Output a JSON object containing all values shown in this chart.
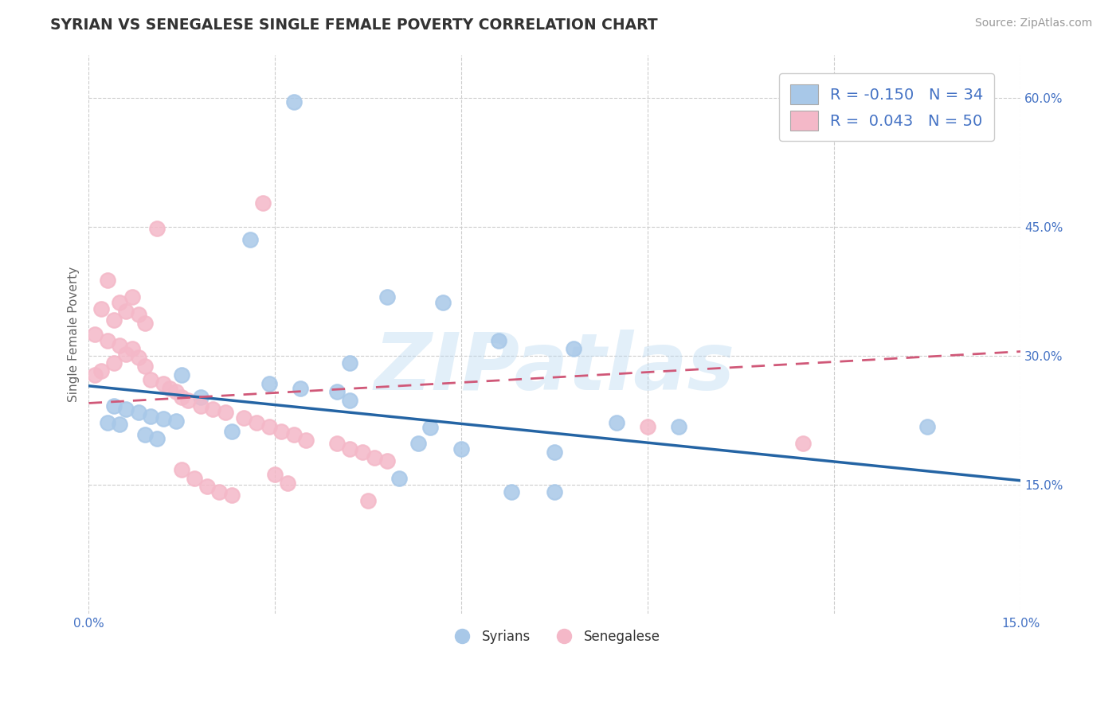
{
  "title": "SYRIAN VS SENEGALESE SINGLE FEMALE POVERTY CORRELATION CHART",
  "source": "Source: ZipAtlas.com",
  "ylabel": "Single Female Poverty",
  "legend_syrians": "Syrians",
  "legend_senegalese": "Senegalese",
  "syrian_R": -0.15,
  "syrian_N": 34,
  "senegalese_R": 0.043,
  "senegalese_N": 50,
  "xlim": [
    0,
    0.15
  ],
  "ylim": [
    0.0,
    0.65
  ],
  "yticks": [
    0.15,
    0.3,
    0.45,
    0.6
  ],
  "ytick_labels": [
    "15.0%",
    "30.0%",
    "45.0%",
    "60.0%"
  ],
  "xticks": [
    0.0,
    0.03,
    0.06,
    0.09,
    0.12,
    0.15
  ],
  "xtick_labels": [
    "0.0%",
    "",
    "",
    "",
    "",
    "15.0%"
  ],
  "blue_color": "#A8C8E8",
  "pink_color": "#F4B8C8",
  "blue_line_color": "#2464A4",
  "pink_line_color": "#D05878",
  "watermark": "ZIPatlas",
  "background_color": "#FFFFFF",
  "grid_color": "#CCCCCC",
  "syrian_line_x": [
    0.0,
    0.15
  ],
  "syrian_line_y": [
    0.265,
    0.155
  ],
  "senegalese_line_x": [
    0.0,
    0.15
  ],
  "senegalese_line_y": [
    0.245,
    0.305
  ],
  "syrian_points": [
    [
      0.033,
      0.595
    ],
    [
      0.026,
      0.435
    ],
    [
      0.048,
      0.368
    ],
    [
      0.057,
      0.362
    ],
    [
      0.066,
      0.318
    ],
    [
      0.078,
      0.308
    ],
    [
      0.042,
      0.292
    ],
    [
      0.015,
      0.278
    ],
    [
      0.029,
      0.268
    ],
    [
      0.034,
      0.262
    ],
    [
      0.04,
      0.258
    ],
    [
      0.018,
      0.252
    ],
    [
      0.042,
      0.248
    ],
    [
      0.004,
      0.242
    ],
    [
      0.006,
      0.238
    ],
    [
      0.008,
      0.234
    ],
    [
      0.01,
      0.23
    ],
    [
      0.012,
      0.227
    ],
    [
      0.014,
      0.224
    ],
    [
      0.003,
      0.222
    ],
    [
      0.005,
      0.22
    ],
    [
      0.055,
      0.217
    ],
    [
      0.023,
      0.212
    ],
    [
      0.009,
      0.208
    ],
    [
      0.011,
      0.204
    ],
    [
      0.053,
      0.198
    ],
    [
      0.06,
      0.192
    ],
    [
      0.075,
      0.188
    ],
    [
      0.05,
      0.158
    ],
    [
      0.068,
      0.142
    ],
    [
      0.085,
      0.222
    ],
    [
      0.095,
      0.218
    ],
    [
      0.135,
      0.218
    ],
    [
      0.075,
      0.142
    ]
  ],
  "senegalese_points": [
    [
      0.028,
      0.478
    ],
    [
      0.011,
      0.448
    ],
    [
      0.003,
      0.388
    ],
    [
      0.005,
      0.362
    ],
    [
      0.007,
      0.368
    ],
    [
      0.002,
      0.355
    ],
    [
      0.006,
      0.352
    ],
    [
      0.008,
      0.348
    ],
    [
      0.004,
      0.342
    ],
    [
      0.009,
      0.338
    ],
    [
      0.001,
      0.325
    ],
    [
      0.003,
      0.318
    ],
    [
      0.005,
      0.312
    ],
    [
      0.007,
      0.308
    ],
    [
      0.006,
      0.302
    ],
    [
      0.008,
      0.298
    ],
    [
      0.004,
      0.292
    ],
    [
      0.009,
      0.288
    ],
    [
      0.002,
      0.282
    ],
    [
      0.001,
      0.278
    ],
    [
      0.01,
      0.272
    ],
    [
      0.012,
      0.268
    ],
    [
      0.013,
      0.262
    ],
    [
      0.014,
      0.258
    ],
    [
      0.015,
      0.252
    ],
    [
      0.016,
      0.248
    ],
    [
      0.018,
      0.242
    ],
    [
      0.02,
      0.238
    ],
    [
      0.022,
      0.234
    ],
    [
      0.025,
      0.228
    ],
    [
      0.027,
      0.222
    ],
    [
      0.029,
      0.218
    ],
    [
      0.031,
      0.212
    ],
    [
      0.033,
      0.208
    ],
    [
      0.035,
      0.202
    ],
    [
      0.04,
      0.198
    ],
    [
      0.042,
      0.192
    ],
    [
      0.044,
      0.188
    ],
    [
      0.046,
      0.182
    ],
    [
      0.048,
      0.178
    ],
    [
      0.015,
      0.168
    ],
    [
      0.03,
      0.162
    ],
    [
      0.017,
      0.158
    ],
    [
      0.032,
      0.152
    ],
    [
      0.019,
      0.148
    ],
    [
      0.021,
      0.142
    ],
    [
      0.023,
      0.138
    ],
    [
      0.045,
      0.132
    ],
    [
      0.09,
      0.218
    ],
    [
      0.115,
      0.198
    ]
  ]
}
